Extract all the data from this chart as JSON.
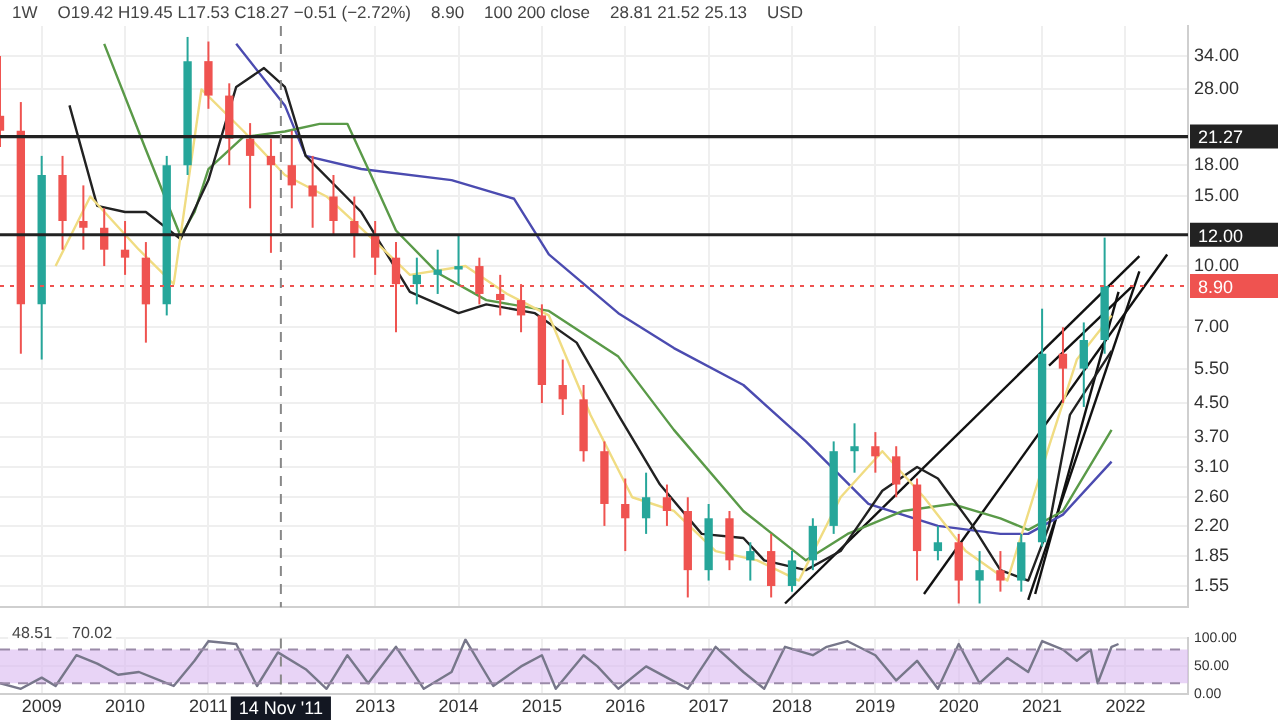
{
  "chart_data": [
    {
      "type": "candlestick",
      "annotations": [
        "1W",
        "O19.42 H19.45 L17.53 C18.27 −0.51 (−2.72%)",
        "8.90",
        "100 200 close",
        "28.81 21.52 25.13",
        "USD"
      ],
      "x": [
        "2008-07",
        "2008-10",
        "2009-01",
        "2009-04",
        "2009-07",
        "2009-10",
        "2010-01",
        "2010-04",
        "2010-07",
        "2010-10",
        "2011-01",
        "2011-04",
        "2011-07",
        "2011-10",
        "2012-01",
        "2012-04",
        "2012-07",
        "2012-10",
        "2013-01",
        "2013-04",
        "2013-07",
        "2013-10",
        "2014-01",
        "2014-04",
        "2014-07",
        "2014-10",
        "2015-01",
        "2015-04",
        "2015-07",
        "2015-10",
        "2016-01",
        "2016-04",
        "2016-07",
        "2016-10",
        "2017-01",
        "2017-04",
        "2017-07",
        "2017-10",
        "2018-01",
        "2018-04",
        "2018-07",
        "2018-10",
        "2019-01",
        "2019-04",
        "2019-07",
        "2019-10",
        "2020-01",
        "2020-04",
        "2020-07",
        "2020-10",
        "2021-01",
        "2021-04",
        "2021-07",
        "2021-10"
      ],
      "ohlc": [
        [
          24,
          34,
          20,
          22
        ],
        [
          22,
          26,
          6,
          8
        ],
        [
          8,
          19,
          5.8,
          17
        ],
        [
          17,
          19,
          11,
          13
        ],
        [
          13,
          16,
          11,
          12.5
        ],
        [
          12.5,
          14,
          10,
          11
        ],
        [
          11,
          13,
          9.5,
          10.5
        ],
        [
          10.5,
          11.5,
          6.4,
          8
        ],
        [
          8,
          19,
          7.5,
          18
        ],
        [
          18,
          38,
          17,
          33
        ],
        [
          33,
          37,
          25,
          27
        ],
        [
          27,
          29,
          18,
          21
        ],
        [
          21,
          23,
          14,
          19
        ],
        [
          19,
          21,
          10.8,
          18
        ],
        [
          18,
          22,
          14,
          16
        ],
        [
          16,
          19,
          12.5,
          15
        ],
        [
          15,
          17,
          12,
          13
        ],
        [
          13,
          15,
          10.5,
          12
        ],
        [
          12,
          13,
          9.5,
          10.5
        ],
        [
          10.5,
          11.5,
          6.8,
          9
        ],
        [
          9,
          10.5,
          8,
          9.5
        ],
        [
          9.5,
          11,
          8.5,
          9.8
        ],
        [
          9.8,
          12,
          9,
          10
        ],
        [
          10,
          10.5,
          8,
          8.5
        ],
        [
          8.5,
          9.5,
          7.5,
          8.2
        ],
        [
          8.2,
          9,
          6.8,
          7.5
        ],
        [
          7.5,
          8,
          4.5,
          5
        ],
        [
          5,
          5.8,
          4.2,
          4.6
        ],
        [
          4.6,
          5,
          3.2,
          3.4
        ],
        [
          3.4,
          3.6,
          2.2,
          2.5
        ],
        [
          2.5,
          2.9,
          1.9,
          2.3
        ],
        [
          2.3,
          3,
          2.1,
          2.6
        ],
        [
          2.6,
          2.8,
          2.2,
          2.4
        ],
        [
          2.4,
          2.6,
          1.45,
          1.7
        ],
        [
          1.7,
          2.5,
          1.6,
          2.3
        ],
        [
          2.3,
          2.4,
          1.7,
          1.8
        ],
        [
          1.8,
          2,
          1.6,
          1.9
        ],
        [
          1.9,
          2.1,
          1.45,
          1.55
        ],
        [
          1.55,
          1.9,
          1.5,
          1.8
        ],
        [
          1.8,
          2.3,
          1.7,
          2.2
        ],
        [
          2.2,
          3.6,
          2.1,
          3.4
        ],
        [
          3.4,
          4,
          3,
          3.5
        ],
        [
          3.5,
          3.8,
          3,
          3.3
        ],
        [
          3.3,
          3.5,
          2.6,
          2.8
        ],
        [
          2.8,
          2.9,
          1.6,
          1.9
        ],
        [
          1.9,
          2.2,
          1.8,
          2
        ],
        [
          2,
          2.1,
          1.4,
          1.6
        ],
        [
          1.6,
          1.9,
          1.4,
          1.7
        ],
        [
          1.7,
          1.9,
          1.5,
          1.6
        ],
        [
          1.6,
          2.1,
          1.5,
          2
        ],
        [
          2,
          7.8,
          1.95,
          6
        ],
        [
          6,
          7,
          4.5,
          5.5
        ],
        [
          5.5,
          7.2,
          4.4,
          6.5
        ],
        [
          6.5,
          11.8,
          6,
          8.9
        ]
      ],
      "colors": [
        "#ef5350",
        "#ef5350",
        "#26a69a",
        "#ef5350",
        "#ef5350",
        "#ef5350",
        "#ef5350",
        "#ef5350",
        "#26a69a",
        "#26a69a",
        "#ef5350",
        "#ef5350",
        "#ef5350",
        "#ef5350",
        "#ef5350",
        "#ef5350",
        "#ef5350",
        "#ef5350",
        "#ef5350",
        "#ef5350",
        "#26a69a",
        "#26a69a",
        "#26a69a",
        "#ef5350",
        "#ef5350",
        "#ef5350",
        "#ef5350",
        "#ef5350",
        "#ef5350",
        "#ef5350",
        "#ef5350",
        "#26a69a",
        "#ef5350",
        "#ef5350",
        "#26a69a",
        "#ef5350",
        "#26a69a",
        "#ef5350",
        "#26a69a",
        "#26a69a",
        "#26a69a",
        "#26a69a",
        "#ef5350",
        "#ef5350",
        "#ef5350",
        "#26a69a",
        "#ef5350",
        "#26a69a",
        "#ef5350",
        "#26a69a",
        "#26a69a",
        "#ef5350",
        "#26a69a",
        "#26a69a"
      ],
      "series": [
        {
          "type": "line",
          "color": "#f0dc82",
          "x": [
            "2009-03",
            "2009-08",
            "2010-03",
            "2010-08",
            "2010-12",
            "2011-06",
            "2011-12",
            "2012-06",
            "2012-12",
            "2013-06",
            "2014-02",
            "2014-08",
            "2015-02",
            "2015-08",
            "2016-02",
            "2016-08",
            "2017-02",
            "2017-08",
            "2018-02",
            "2018-08",
            "2019-02",
            "2019-08",
            "2020-02",
            "2020-08",
            "2021-02",
            "2021-06",
            "2021-11"
          ],
          "values": [
            10,
            15,
            11,
            9,
            28,
            22,
            17,
            15,
            12,
            9.5,
            10,
            8.5,
            7.5,
            4.2,
            2.6,
            2.4,
            1.9,
            1.8,
            1.6,
            2.6,
            3.4,
            2.6,
            1.9,
            1.6,
            3.5,
            5.8,
            7.5
          ]
        },
        {
          "type": "line",
          "color": "#222222",
          "x": [
            "2009-05",
            "2009-09",
            "2010-01",
            "2010-04",
            "2010-09",
            "2011-01",
            "2011-05",
            "2011-09",
            "2011-12",
            "2012-03",
            "2012-11",
            "2013-06",
            "2014-01",
            "2014-05",
            "2014-12",
            "2015-06",
            "2015-12",
            "2016-06",
            "2016-12",
            "2017-06",
            "2017-09",
            "2018-03",
            "2018-08",
            "2019-02",
            "2019-07",
            "2019-10",
            "2020-03",
            "2020-07",
            "2020-11",
            "2021-02",
            "2021-05",
            "2021-11"
          ],
          "values": [
            25.5,
            14.2,
            13.7,
            13.7,
            11.7,
            16.5,
            28.4,
            31.7,
            28.4,
            19,
            13.7,
            8.6,
            7.6,
            8,
            7.6,
            6.4,
            4.2,
            2.8,
            2.1,
            2.05,
            1.8,
            1.7,
            1.9,
            2.7,
            3.1,
            2.9,
            2.2,
            1.7,
            1.6,
            2.2,
            4.2,
            6.1
          ]
        },
        {
          "type": "line",
          "color": "#5a9a48",
          "x": [
            "2009-10",
            "2010-04",
            "2010-09",
            "2010-11",
            "2011-01",
            "2011-06",
            "2011-12",
            "2012-05",
            "2012-09",
            "2012-12",
            "2013-04",
            "2013-10",
            "2014-05",
            "2015-02",
            "2015-12",
            "2016-08",
            "2017-06",
            "2018-03",
            "2018-09",
            "2019-05",
            "2019-12",
            "2020-07",
            "2020-11",
            "2021-04",
            "2021-11"
          ],
          "values": [
            36.5,
            19.7,
            11.9,
            13.7,
            17.6,
            21.2,
            21.9,
            22.9,
            22.9,
            17.6,
            12.3,
            9.6,
            8.2,
            7.7,
            5.9,
            3.85,
            2.4,
            1.8,
            2.1,
            2.4,
            2.5,
            2.3,
            2.15,
            2.4,
            3.85
          ]
        },
        {
          "type": "line",
          "color": "#4b4bb0",
          "x": [
            "2011-05",
            "2011-12",
            "2012-03",
            "2012-11",
            "2013-12",
            "2014-09",
            "2015-02",
            "2015-12",
            "2016-08",
            "2017-06",
            "2018-03",
            "2018-12",
            "2019-10",
            "2020-07",
            "2020-11",
            "2021-04",
            "2021-11"
          ],
          "values": [
            36.5,
            25.5,
            19,
            17.6,
            16.5,
            14.8,
            10.7,
            7.6,
            6.2,
            5,
            3.6,
            2.5,
            2.2,
            2.1,
            2.1,
            2.35,
            3.2
          ]
        },
        {
          "type": "line",
          "color": "#111111",
          "x": [
            "2017-12",
            "2022-03"
          ],
          "values": [
            1.4,
            10.6
          ]
        },
        {
          "type": "line",
          "color": "#111111",
          "x": [
            "2019-08",
            "2022-07"
          ],
          "values": [
            1.48,
            10.7
          ]
        },
        {
          "type": "line",
          "color": "#111111",
          "x": [
            "2020-11",
            "2022-03"
          ],
          "values": [
            1.43,
            9.7
          ]
        },
        {
          "type": "line",
          "color": "#111111",
          "x": [
            "2020-12",
            "2021-12"
          ],
          "values": [
            1.48,
            8.6
          ]
        },
        {
          "type": "line",
          "color": "#111111",
          "x": [
            "2021-02",
            "2022-02"
          ],
          "values": [
            5.6,
            8.9
          ]
        }
      ],
      "xlim": [
        "2008-07",
        "2022-10"
      ],
      "xticks": [
        "2009",
        "2010",
        "2011",
        "2013",
        "2014",
        "2015",
        "2016",
        "2017",
        "2018",
        "2019",
        "2020",
        "2021",
        "2022"
      ],
      "ylim": [
        1.37,
        40.5
      ],
      "yticks": [
        {
          "value": 1.55,
          "label": "1.55"
        },
        {
          "value": 1.85,
          "label": "1.85"
        },
        {
          "value": 2.2,
          "label": "2.20"
        },
        {
          "value": 2.6,
          "label": "2.60"
        },
        {
          "value": 3.1,
          "label": "3.10"
        },
        {
          "value": 3.7,
          "label": "3.70"
        },
        {
          "value": 4.5,
          "label": "4.50"
        },
        {
          "value": 5.5,
          "label": "5.50"
        },
        {
          "value": 7,
          "label": "7.00"
        },
        {
          "value": 10,
          "label": "10.00"
        },
        {
          "value": 15,
          "label": "15.00"
        },
        {
          "value": 18,
          "label": "18.00"
        },
        {
          "value": 28,
          "label": "28.00"
        },
        {
          "value": 34,
          "label": "34.00"
        }
      ],
      "log": "y",
      "grid": true,
      "tick_labels": "y",
      "ref_lines": [
        {
          "axis": "y",
          "value": 21.27,
          "label": "21.27",
          "color": "#222222"
        },
        {
          "axis": "y",
          "value": 12,
          "label": "12.00",
          "color": "#222222"
        },
        {
          "axis": "y",
          "value": 8.9,
          "label": "8.90",
          "color": "#ef5350",
          "line_style": "dotted"
        },
        {
          "axis": "x",
          "value": "2011-11-14",
          "color": "#888888",
          "line_style": "dashed"
        }
      ]
    },
    {
      "type": "line",
      "annotations": [
        "48.51",
        "70.02"
      ],
      "series": [
        {
          "color": "#77778a",
          "x": [
            "2008-07",
            "2008-10",
            "2009-01",
            "2009-03",
            "2009-06",
            "2009-09",
            "2009-12",
            "2010-03",
            "2010-06",
            "2010-08",
            "2010-11",
            "2011-01",
            "2011-05",
            "2011-08",
            "2011-11",
            "2012-03",
            "2012-06",
            "2012-09",
            "2012-12",
            "2013-04",
            "2013-08",
            "2013-12",
            "2014-02",
            "2014-06",
            "2014-10",
            "2015-01",
            "2015-03",
            "2015-07",
            "2015-09",
            "2015-12",
            "2016-04",
            "2016-07",
            "2016-10",
            "2017-02",
            "2017-06",
            "2017-09",
            "2017-12",
            "2018-04",
            "2018-06",
            "2018-09",
            "2019-01",
            "2019-04",
            "2019-07",
            "2019-10",
            "2020-01",
            "2020-04",
            "2020-08",
            "2020-11",
            "2021-01",
            "2021-04",
            "2021-06",
            "2021-08",
            "2021-09",
            "2021-11",
            "2021-12"
          ],
          "values": [
            20,
            10,
            30,
            15,
            70,
            55,
            35,
            40,
            25,
            15,
            60,
            95,
            90,
            15,
            75,
            45,
            10,
            70,
            20,
            85,
            10,
            40,
            98,
            15,
            50,
            70,
            10,
            70,
            50,
            10,
            50,
            30,
            10,
            85,
            40,
            10,
            85,
            70,
            85,
            95,
            70,
            25,
            60,
            10,
            90,
            20,
            65,
            40,
            95,
            80,
            60,
            80,
            20,
            85,
            90
          ]
        }
      ],
      "xlim": [
        "2008-07",
        "2022-10"
      ],
      "xticks": [
        "2009",
        "2010",
        "2011",
        "2013",
        "2014",
        "2015",
        "2016",
        "2017",
        "2018",
        "2019",
        "2020",
        "2021",
        "2022"
      ],
      "ylim": [
        0,
        100
      ],
      "yticks": [
        {
          "value": 0,
          "label": "0.00"
        },
        {
          "value": 50,
          "label": "50.00"
        },
        {
          "value": 100,
          "label": "100.00"
        }
      ],
      "grid": true,
      "bands": [
        {
          "axis": "y",
          "from": 20,
          "to": 80,
          "color": "#d8b8f0"
        }
      ],
      "ref_lines": [
        {
          "axis": "x",
          "value": "2011-11-14",
          "label": "14 Nov '11",
          "color": "#888888",
          "line_style": "dashed"
        },
        {
          "axis": "y",
          "value": 20,
          "color": "#9a8aa8",
          "line_style": "dashed"
        },
        {
          "axis": "y",
          "value": 80,
          "color": "#9a8aa8",
          "line_style": "dashed"
        }
      ]
    }
  ]
}
